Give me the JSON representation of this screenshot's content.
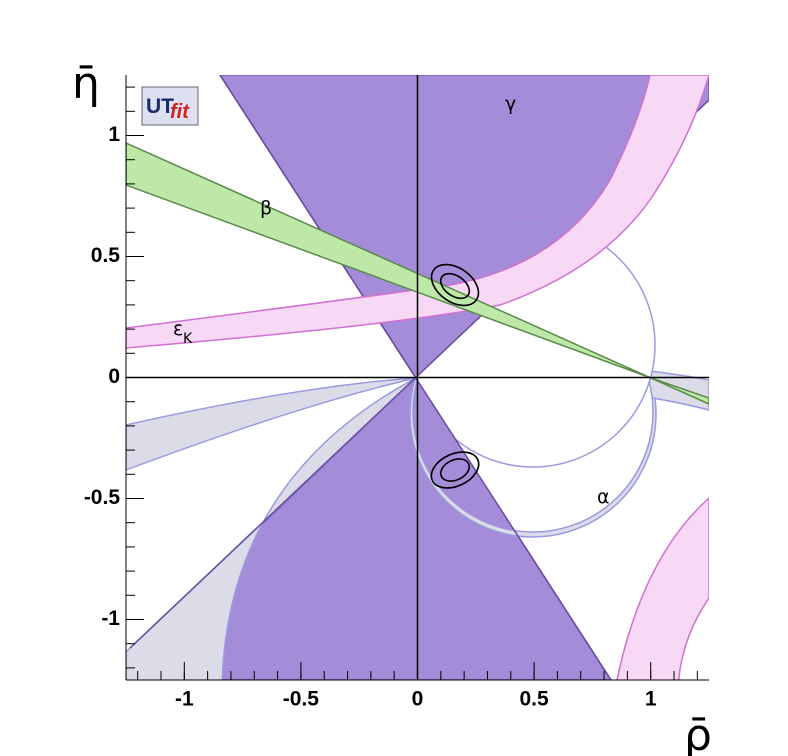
{
  "chart_data": {
    "type": "region",
    "x_label": "ρ̄",
    "y_label": "η̄",
    "xlim": [
      -1.25,
      1.25
    ],
    "ylim": [
      -1.25,
      1.25
    ],
    "xticks": [
      -1,
      -0.5,
      0,
      0.5,
      1
    ],
    "yticks": [
      -1,
      -0.5,
      0,
      0.5,
      1
    ],
    "annotations": [
      "γ",
      "β",
      "α"
    ],
    "epsilon_label": {
      "symbol": "ε",
      "subscript": "K"
    },
    "logo": {
      "left": "UT",
      "right": "fit"
    }
  }
}
